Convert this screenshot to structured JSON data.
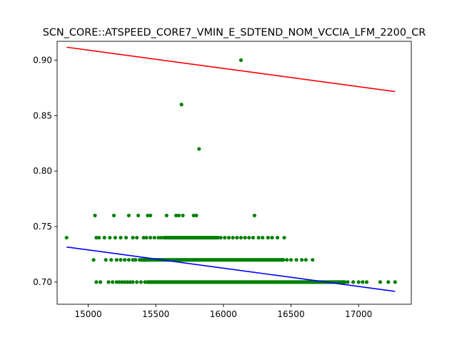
{
  "chart_data": {
    "type": "scatter",
    "title": "SCN_CORE::ATSPEED_CORE7_VMIN_E_SDTEND_NOM_VCCIA_LFM_2200_CR",
    "xlabel": "",
    "ylabel": "",
    "xlim": [
      14770,
      17390
    ],
    "ylim": [
      0.68,
      0.917
    ],
    "xticks": [
      15000,
      15500,
      16000,
      16500,
      17000
    ],
    "xtick_labels": [
      "15000",
      "15500",
      "16000",
      "16500",
      "17000"
    ],
    "yticks": [
      0.7,
      0.75,
      0.8,
      0.85,
      0.9
    ],
    "ytick_labels": [
      "0.70",
      "0.75",
      "0.80",
      "0.85",
      "0.90"
    ],
    "grid": false,
    "colors": {
      "points": "#008000",
      "upper_line": "#ff0000",
      "lower_line": "#0000ff"
    },
    "series": [
      {
        "color": "#008000",
        "marker": "dot",
        "bands": [
          {
            "y": 0.7,
            "x_dense": [
              15450,
              16900
            ],
            "x_sparse": [
              15060,
              15090,
              15150,
              15180,
              15210,
              15230,
              15250,
              15270,
              15290,
              15310,
              15330,
              15360,
              15390,
              15420,
              15440,
              16920,
              16960,
              17000,
              17030,
              17060,
              17160,
              17220,
              17270
            ]
          },
          {
            "y": 0.72,
            "x_dense": [
              15380,
              16450
            ],
            "x_sparse": [
              15040,
              15130,
              15170,
              15210,
              15240,
              15270,
              15300,
              15330,
              15350,
              16470,
              16500,
              16540,
              16580,
              16610,
              16660
            ]
          },
          {
            "y": 0.74,
            "x_dense": [
              15560,
              15960
            ],
            "x_sparse": [
              14840,
              15060,
              15080,
              15120,
              15160,
              15200,
              15240,
              15280,
              15330,
              15360,
              15410,
              15430,
              15460,
              15490,
              15520,
              15540,
              15980,
              16010,
              16040,
              16070,
              16100,
              16130,
              16160,
              16190,
              16220,
              16260,
              16290,
              16330,
              16360,
              16400,
              16450
            ]
          }
        ],
        "points": [
          {
            "x": 16130,
            "y": 0.9
          },
          {
            "x": 15690,
            "y": 0.86
          },
          {
            "x": 15820,
            "y": 0.82
          },
          {
            "x": 15050,
            "y": 0.76
          },
          {
            "x": 15190,
            "y": 0.76
          },
          {
            "x": 15300,
            "y": 0.76
          },
          {
            "x": 15370,
            "y": 0.76
          },
          {
            "x": 15440,
            "y": 0.76
          },
          {
            "x": 15460,
            "y": 0.76
          },
          {
            "x": 15580,
            "y": 0.76
          },
          {
            "x": 15650,
            "y": 0.76
          },
          {
            "x": 15670,
            "y": 0.76
          },
          {
            "x": 15700,
            "y": 0.76
          },
          {
            "x": 15780,
            "y": 0.76
          },
          {
            "x": 15800,
            "y": 0.76
          },
          {
            "x": 16230,
            "y": 0.76
          }
        ]
      }
    ],
    "lines": [
      {
        "color": "#ff0000",
        "x": [
          14840,
          17270
        ],
        "y": [
          0.9117,
          0.8717
        ]
      },
      {
        "color": "#0000ff",
        "x": [
          14840,
          17270
        ],
        "y": [
          0.7316,
          0.6916
        ]
      }
    ]
  }
}
